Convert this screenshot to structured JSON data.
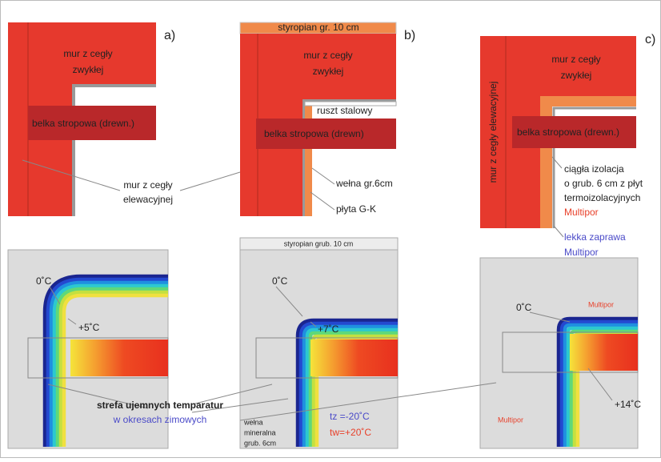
{
  "panels": {
    "a": {
      "tag": "a)",
      "wall": [
        "mur z cegły",
        "zwykłej"
      ],
      "beam": "belka stropowa (drewn.)"
    },
    "b": {
      "tag": "b)",
      "eps": "styropian gr. 10 cm",
      "wall": [
        "mur z cegły",
        "zwykłej"
      ],
      "frame": "ruszt stalowy",
      "beam": "belka stropowa (drewn)",
      "wool": "wełna gr.6cm",
      "board": "płyta G-K"
    },
    "c": {
      "tag": "c)",
      "wall": [
        "mur z cegły",
        "zwykłej"
      ],
      "facade": "mur z cegły elewacyjnej",
      "beam": "belka stropowa (drewn.)",
      "insulation": [
        "ciągła izolacja",
        "o grub. 6 cm z płyt",
        "termoizolacyjnych",
        "Multipor"
      ],
      "mortar": [
        "lekka zaprawa",
        "Multipor"
      ]
    }
  },
  "facade_label": [
    "mur z cegły",
    "elewacyjnej"
  ],
  "thermal": {
    "a": {
      "zero": "0˚C",
      "inner": "+5˚C"
    },
    "b": {
      "eps": "styropian grub. 10 cm",
      "zero": "0˚C",
      "inner": "+7˚C",
      "wool": [
        "wełna",
        "mineralna",
        "grub. 6cm"
      ],
      "tz": "tz =-20˚C",
      "tw": "tw=+20˚C"
    },
    "c": {
      "zero": "0˚C",
      "inner": "+14˚C",
      "multipor_top": "Multipor",
      "multipor_left": "Multipor"
    },
    "zone": [
      "strefa ujemnych temparatur",
      "w okresach zimowych"
    ]
  }
}
